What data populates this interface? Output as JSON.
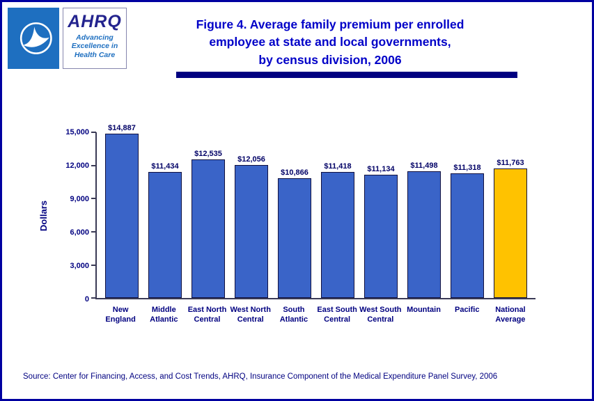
{
  "header": {
    "title": "Figure 4. Average family premium per enrolled\nemployee at state and local governments,\nby census division, 2006",
    "ahrq": {
      "word": "AHRQ",
      "tagline": "Advancing\nExcellence in\nHealth Care"
    }
  },
  "chart_data": {
    "type": "bar",
    "title": "Figure 4. Average family premium per enrolled employee at state and local governments, by census division, 2006",
    "categories": [
      "New England",
      "Middle Atlantic",
      "East North Central",
      "West North Central",
      "South Atlantic",
      "East South Central",
      "West South Central",
      "Mountain",
      "Pacific",
      "National Average"
    ],
    "category_display": [
      "New\nEngland",
      "Middle\nAtlantic",
      "East North\nCentral",
      "West North\nCentral",
      "South\nAtlantic",
      "East South\nCentral",
      "West South\nCentral",
      "Mountain",
      "Pacific",
      "National\nAverage"
    ],
    "values": [
      14887,
      11434,
      12535,
      12056,
      10866,
      11418,
      11134,
      11498,
      11318,
      11763
    ],
    "value_labels": [
      "$14,887",
      "$11,434",
      "$12,535",
      "$12,056",
      "$10,866",
      "$11,418",
      "$11,134",
      "$11,498",
      "$11,318",
      "$11,763"
    ],
    "xlabel": "",
    "ylabel": "Dollars",
    "ylim": [
      0,
      15000
    ],
    "yticks": [
      0,
      3000,
      6000,
      9000,
      12000,
      15000
    ],
    "ytick_labels": [
      "0",
      "3,000",
      "6,000",
      "9,000",
      "12,000",
      "15,000"
    ],
    "grid": false,
    "legend": false,
    "bar_color": "#3A64C8",
    "highlight_color": "#FFC200",
    "highlight_index": 9
  },
  "footer": {
    "source": "Source: Center for Financing, Access, and Cost Trends, AHRQ, Insurance Component of the Medical Expenditure Panel Survey, 2006"
  }
}
